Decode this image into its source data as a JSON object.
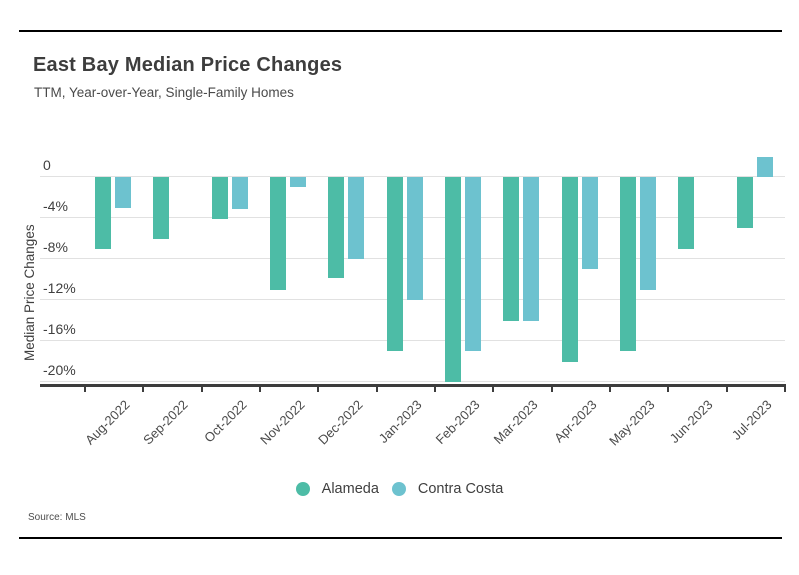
{
  "header": {
    "title": "East Bay Median Price Changes",
    "subtitle": "TTM, Year-over-Year, Single-Family Homes"
  },
  "footer": {
    "source": "Source: MLS"
  },
  "colors": {
    "alameda": "#4dbca6",
    "contra_costa": "#6dc2cf",
    "gridline": "#e1e1e1",
    "axis": "#3d3d3d",
    "rule": "#000000"
  },
  "legend": {
    "items": [
      {
        "label": "Alameda",
        "color": "#4dbca6"
      },
      {
        "label": "Contra Costa",
        "color": "#6dc2cf"
      }
    ]
  },
  "chart_data": {
    "type": "bar",
    "title": "East Bay Median Price Changes",
    "subtitle": "TTM, Year-over-Year, Single-Family Homes",
    "xlabel": "",
    "ylabel": "Median Price Changes",
    "categories": [
      "Aug-2022",
      "Sep-2022",
      "Oct-2022",
      "Nov-2022",
      "Dec-2022",
      "Jan-2023",
      "Feb-2023",
      "Mar-2023",
      "Apr-2023",
      "May-2023",
      "Jun-2023",
      "Jul-2023"
    ],
    "series": [
      {
        "name": "Alameda",
        "color": "#4dbca6",
        "values": [
          -7.0,
          -6.0,
          -4.1,
          -11.0,
          -9.9,
          -17.0,
          -20.0,
          -14.0,
          -18.0,
          -17.0,
          -7.0,
          -5.0
        ]
      },
      {
        "name": "Contra Costa",
        "color": "#6dc2cf",
        "values": [
          -3.0,
          null,
          -3.1,
          -1.0,
          -8.0,
          -12.0,
          -17.0,
          -14.0,
          -9.0,
          -11.0,
          null,
          2.0
        ]
      }
    ],
    "unit": "%",
    "y_ticks": [
      "0",
      "-4%",
      "-8%",
      "-12%",
      "-16%",
      "-20%"
    ],
    "y_tick_values": [
      0,
      -4,
      -8,
      -12,
      -16,
      -20
    ],
    "ylim": [
      -21.5,
      2.2
    ],
    "grid": true,
    "legend_position": "bottom"
  }
}
